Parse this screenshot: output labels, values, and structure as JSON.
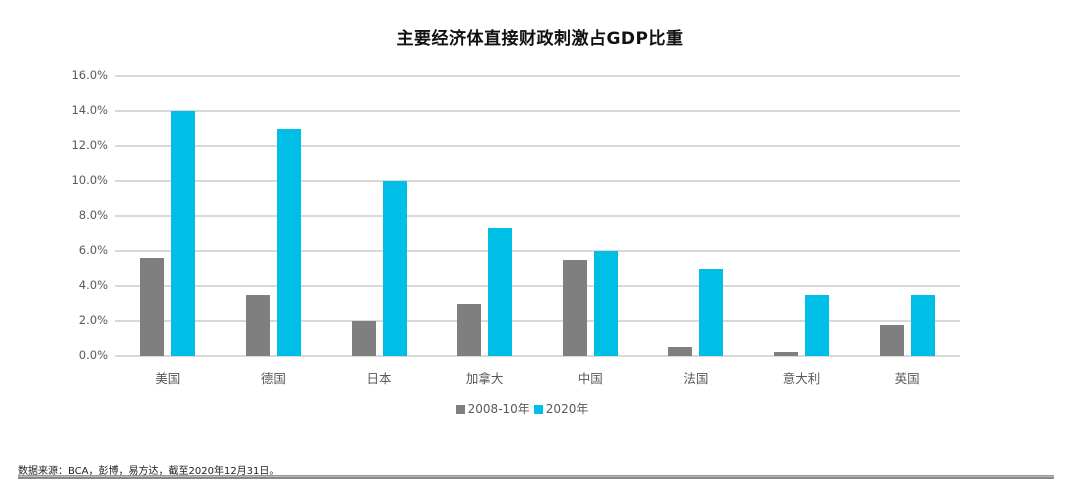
{
  "chart_data": {
    "type": "bar",
    "title": "主要经济体直接财政刺激占GDP比重",
    "categories": [
      "美国",
      "德国",
      "日本",
      "加拿大",
      "中国",
      "法国",
      "意大利",
      "英国"
    ],
    "series": [
      {
        "name": "2008-10年",
        "color": "#7f7f7f",
        "values": [
          5.6,
          3.5,
          2.0,
          3.0,
          5.5,
          0.5,
          0.25,
          1.8
        ]
      },
      {
        "name": "2020年",
        "color": "#00bfe6",
        "values": [
          14.0,
          13.0,
          10.0,
          7.3,
          6.0,
          5.0,
          3.5,
          3.5
        ]
      }
    ],
    "xlabel": "",
    "ylabel": "",
    "ylim": [
      0,
      16
    ],
    "yticks": [
      "0.0%",
      "2.0%",
      "4.0%",
      "6.0%",
      "8.0%",
      "10.0%",
      "12.0%",
      "14.0%",
      "16.0%"
    ],
    "grid": true,
    "legend_position": "bottom"
  },
  "title": "主要经济体直接财政刺激占GDP比重",
  "legend": {
    "items": [
      {
        "label": "2008-10年",
        "color": "#7f7f7f"
      },
      {
        "label": "2020年",
        "color": "#00bfe6"
      }
    ]
  },
  "source_note": "数据来源：BCA，彭博，易方达，截至2020年12月31日。"
}
